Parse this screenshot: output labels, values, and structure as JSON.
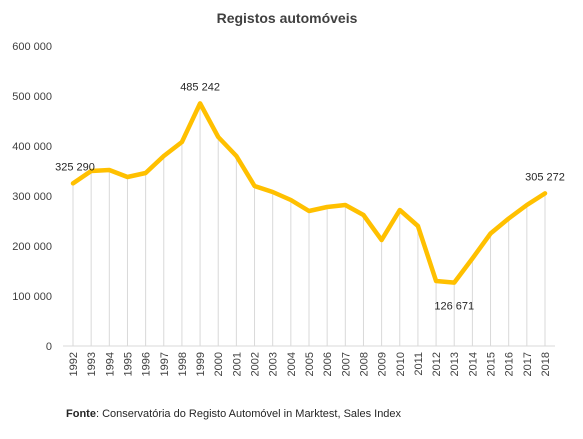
{
  "chart_data": {
    "type": "line",
    "title": "Registos automóveis",
    "xlabel": "",
    "ylabel": "",
    "x": [
      "1992",
      "1993",
      "1994",
      "1995",
      "1996",
      "1997",
      "1998",
      "1999",
      "2000",
      "2001",
      "2002",
      "2003",
      "2004",
      "2005",
      "2006",
      "2007",
      "2008",
      "2009",
      "2010",
      "2011",
      "2012",
      "2013",
      "2014",
      "2015",
      "2016",
      "2017",
      "2018"
    ],
    "series": [
      {
        "values": [
          325290,
          350000,
          352000,
          338000,
          346000,
          380000,
          408000,
          485242,
          418000,
          380000,
          320000,
          308000,
          292000,
          270000,
          278000,
          282000,
          262000,
          212000,
          272000,
          240000,
          130000,
          126671,
          175000,
          225000,
          255000,
          282000,
          305272
        ]
      }
    ],
    "ylim": [
      0,
      600000
    ],
    "yticks": [
      0,
      100000,
      200000,
      300000,
      400000,
      500000,
      600000
    ],
    "ytick_labels": [
      "0",
      "100 000",
      "200 000",
      "300 000",
      "400 000",
      "500 000",
      "600 000"
    ],
    "data_labels": [
      {
        "x": "1992",
        "text": "325 290"
      },
      {
        "x": "1999",
        "text": "485 242"
      },
      {
        "x": "2013",
        "text": "126 671"
      },
      {
        "x": "2018",
        "text": "305 272"
      }
    ],
    "grid": "vertical drop lines",
    "legend": "none",
    "colors": {
      "line": "#FFC000",
      "droplines": "#D9D9D9"
    }
  },
  "source": {
    "label": "Fonte",
    "text": ": Conservatória do Registo Automóvel in Marktest, Sales Index"
  }
}
